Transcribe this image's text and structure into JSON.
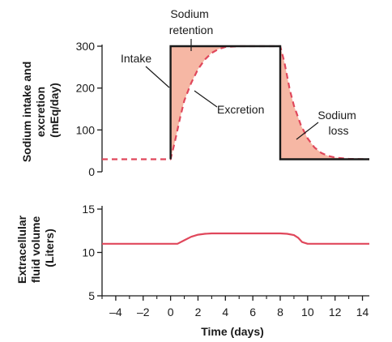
{
  "chart_data": [
    {
      "type": "line",
      "ylabel_lines": [
        "Sodium intake and",
        "excretion",
        "(mEq/day)"
      ],
      "xlim": [
        -5,
        14.5
      ],
      "ylim": [
        0,
        300
      ],
      "yticks": [
        0,
        100,
        200,
        300
      ],
      "series": [
        {
          "name": "Intake",
          "style": "solid",
          "color": "#1a1a1a",
          "x": [
            0,
            0,
            8,
            8,
            14.5
          ],
          "y": [
            30,
            300,
            300,
            30,
            30
          ]
        },
        {
          "name": "Excretion",
          "style": "dashed",
          "color": "#e0475b",
          "x": [
            -5,
            0,
            0.3,
            0.7,
            1,
            1.5,
            2,
            2.5,
            3,
            3.5,
            4,
            5,
            6,
            7,
            8,
            8.3,
            8.7,
            9,
            9.5,
            10,
            10.5,
            11,
            11.5,
            12,
            13,
            14.5
          ],
          "y": [
            30,
            30,
            70,
            130,
            170,
            212,
            245,
            268,
            284,
            293,
            298,
            300,
            300,
            300,
            300,
            262,
            196,
            158,
            112,
            80,
            58,
            45,
            38,
            34,
            31,
            30
          ]
        }
      ],
      "shaded_fill": "#f6b7a4",
      "annotations": [
        {
          "text_lines": [
            "Sodium",
            "retention"
          ]
        },
        {
          "text_lines": [
            "Intake"
          ]
        },
        {
          "text_lines": [
            "Excretion"
          ]
        },
        {
          "text_lines": [
            "Sodium",
            "loss"
          ]
        }
      ]
    },
    {
      "type": "line",
      "ylabel_lines": [
        "Extracellular",
        "fluid volume",
        "(Liters)"
      ],
      "xlabel": "Time (days)",
      "xlim": [
        -5,
        14.5
      ],
      "ylim": [
        5,
        15
      ],
      "yticks": [
        5,
        10,
        15
      ],
      "xticks": [
        -4,
        -2,
        0,
        2,
        4,
        6,
        8,
        10,
        12,
        14
      ],
      "xtick_labels": [
        "–4",
        "–2",
        "0",
        "2",
        "4",
        "6",
        "8",
        "10",
        "12",
        "14"
      ],
      "series": [
        {
          "name": "Extracellular fluid volume",
          "style": "solid",
          "color": "#e0475b",
          "x": [
            -5,
            0,
            0.5,
            1,
            1.5,
            2,
            2.5,
            3,
            4,
            6,
            8,
            8.5,
            9,
            9.3,
            9.6,
            10,
            11,
            14.5
          ],
          "y": [
            11,
            11,
            11,
            11.4,
            11.8,
            12.05,
            12.15,
            12.2,
            12.2,
            12.2,
            12.2,
            12.15,
            12.0,
            11.7,
            11.2,
            11.0,
            11.0,
            11.0
          ]
        }
      ]
    }
  ]
}
